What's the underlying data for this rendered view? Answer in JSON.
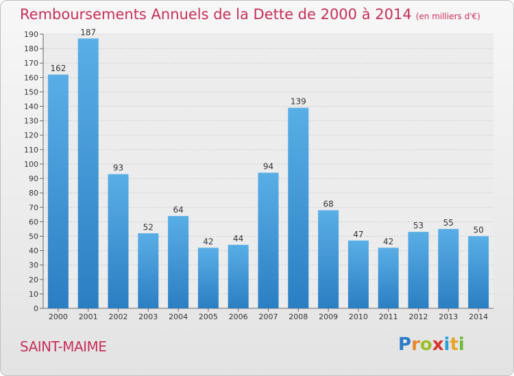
{
  "header": {
    "title": "Remboursements Annuels de la Dette de 2000 à 2014",
    "unit": "(en milliers d'€)"
  },
  "footer": {
    "commune": "SAINT-MAIME",
    "logo": [
      "P",
      "r",
      "o",
      "x",
      "i",
      "t",
      "i"
    ],
    "logo_colors": [
      "#2a7ac6",
      "#e8862a",
      "#9bbf2a",
      "#d6342e",
      "#2a9fd6",
      "#e8a22a",
      "#6fb83a"
    ]
  },
  "colors": {
    "bar_top": "#5aaee6",
    "bar_bottom": "#2b7ec2",
    "grid": "#cccccc",
    "axis_text": "#333333",
    "title": "#c62f5a"
  },
  "chart_data": {
    "type": "bar",
    "categories": [
      "2000",
      "2001",
      "2002",
      "2003",
      "2004",
      "2005",
      "2006",
      "2007",
      "2008",
      "2009",
      "2010",
      "2011",
      "2012",
      "2013",
      "2014"
    ],
    "values": [
      162,
      187,
      93,
      52,
      64,
      42,
      44,
      94,
      139,
      68,
      47,
      42,
      53,
      55,
      50
    ],
    "ylim": [
      0,
      190
    ],
    "ytick_step": 10,
    "grid": true
  }
}
